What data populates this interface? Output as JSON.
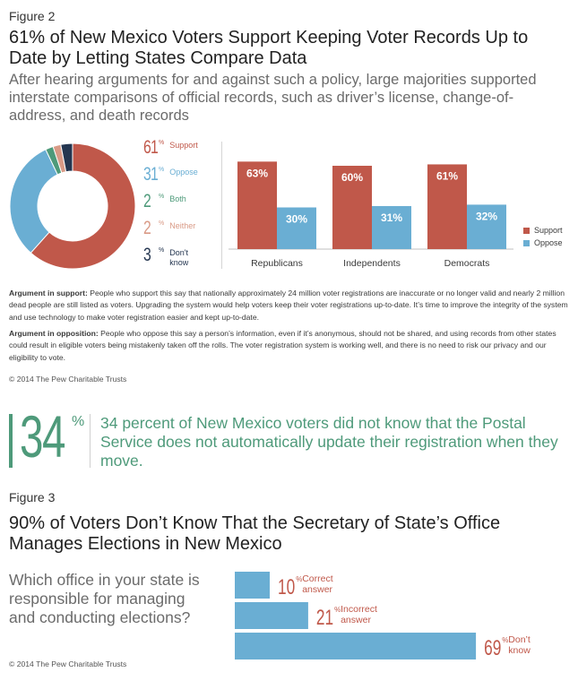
{
  "figure2": {
    "label": "Figure 2",
    "title": "61% of New Mexico Voters Support Keeping Voter Records Up to Date by Letting States Compare Data",
    "subtitle": "After hearing arguments for and against such a policy, large majorities supported interstate comparisons of official records, such as driver’s license, change-of-address, and death records"
  },
  "argument_support": {
    "label": "Argument in support:",
    "text": " People who support this say that nationally approximately 24 million voter registrations are inaccurate or no longer valid and nearly 2 million dead people are still listed as voters. Upgrading the system would help voters keep their voter registrations up-to-date. It’s time to improve the integrity of the system and use technology to make voter registration easier and kept up-to-date."
  },
  "argument_opposition": {
    "label": "Argument in opposition:",
    "text": " People who oppose this say a person’s information, even if it’s anonymous, should not be shared, and using records from other states could result in eligible voters being mistakenly taken off the rolls. The voter registration system is working well, and there is no need to risk our privacy and our eligibility to vote."
  },
  "copyright1": "© 2014 The Pew Charitable Trusts",
  "callout": {
    "number": "34",
    "percent_sign": "%",
    "text": "34 percent of New Mexico voters did not know that the Postal Service does not automatically update their registration when they move."
  },
  "figure3": {
    "label": "Figure 3",
    "title": "90% of Voters Don’t Know That the Secretary of State’s Office Manages Elections in New Mexico",
    "question": "Which office in your state is responsible for managing and conducting elections?"
  },
  "copyright2": "© 2014 The Pew Charitable Trusts",
  "colors": {
    "support": "#c0584a",
    "oppose": "#6aaed3",
    "both": "#4e9a7a",
    "neither": "#d99a86",
    "dont_know": "#243650",
    "office_bar": "#6aaed3"
  },
  "chart_data": [
    {
      "type": "pie",
      "labels": [
        "Support",
        "Oppose",
        "Both",
        "Neither",
        "Don't know"
      ],
      "values": [
        61,
        31,
        2,
        2,
        3
      ],
      "value_labels": [
        "61",
        "31",
        "2",
        "2",
        "3"
      ],
      "value_suffix": "%"
    },
    {
      "type": "bar",
      "categories": [
        "Republicans",
        "Independents",
        "Democrats"
      ],
      "series": [
        {
          "name": "Support",
          "values": [
            63,
            60,
            61
          ],
          "labels": [
            "63%",
            "60%",
            "61%"
          ]
        },
        {
          "name": "Oppose",
          "values": [
            30,
            31,
            32
          ],
          "labels": [
            "30%",
            "31%",
            "32%"
          ]
        }
      ],
      "legend_position": "right"
    },
    {
      "type": "bar",
      "orientation": "horizontal",
      "values": [
        10,
        21,
        69
      ],
      "value_labels": [
        "10",
        "21",
        "69"
      ],
      "value_suffix": "%",
      "categories": [
        "Correct answer",
        "Incorrect answer",
        "Don't know"
      ]
    }
  ]
}
